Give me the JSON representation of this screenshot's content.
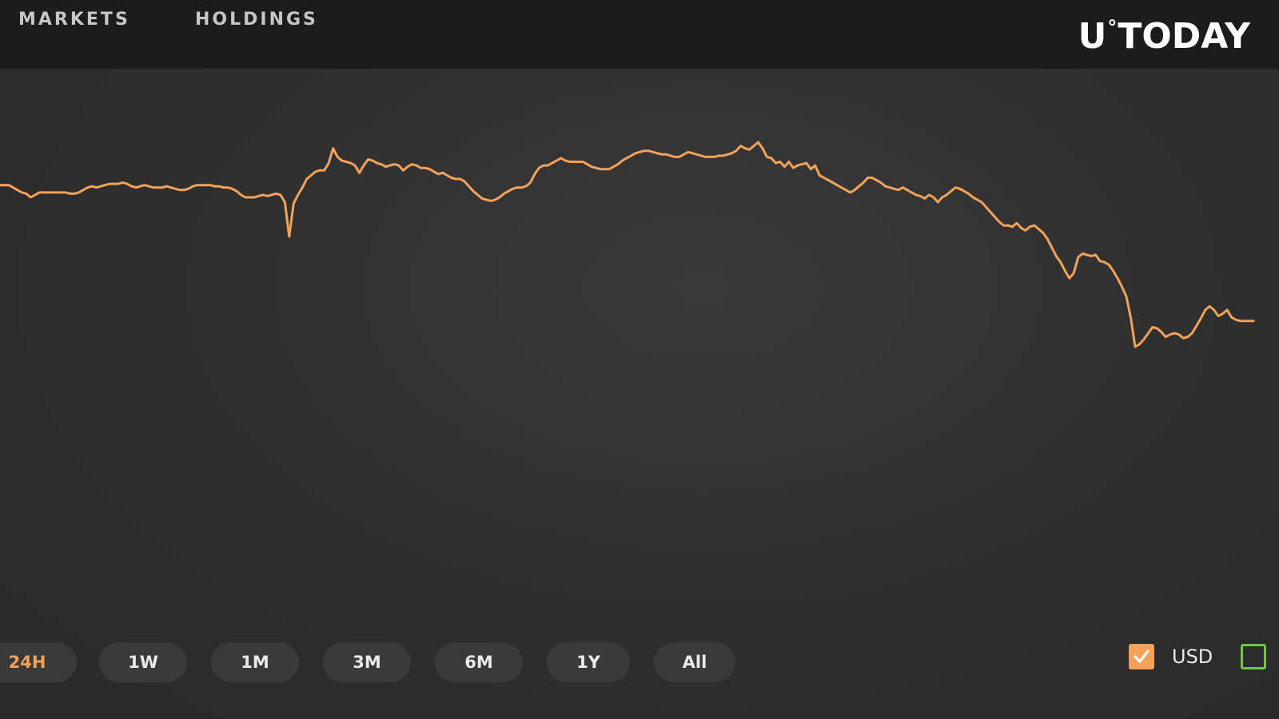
{
  "nav": {
    "tabs": [
      {
        "label": "MARKETS"
      },
      {
        "label": "HOLDINGS"
      }
    ]
  },
  "logo": {
    "left": "U",
    "degree": "°",
    "right": "TODAY"
  },
  "chart_data": {
    "type": "line",
    "line_color": "#f4a259",
    "background": "#2e2e2e",
    "values": [
      72.0,
      72.0,
      72.0,
      71.8,
      71.6,
      71.4,
      71.3,
      71.0,
      71.2,
      71.4,
      71.4,
      71.4,
      71.4,
      71.4,
      71.4,
      71.4,
      71.3,
      71.3,
      71.4,
      71.6,
      71.8,
      71.9,
      71.8,
      71.9,
      72.0,
      72.1,
      72.1,
      72.1,
      72.2,
      72.1,
      71.9,
      71.8,
      71.9,
      72.0,
      71.9,
      71.8,
      71.8,
      71.8,
      71.9,
      71.8,
      71.7,
      71.6,
      71.6,
      71.7,
      71.9,
      72.0,
      72.0,
      72.0,
      72.0,
      71.9,
      71.9,
      71.8,
      71.8,
      71.7,
      71.5,
      71.2,
      71.0,
      71.0,
      71.0,
      71.1,
      71.2,
      71.1,
      71.2,
      71.3,
      71.2,
      70.6,
      67.8,
      70.5,
      71.2,
      71.8,
      72.5,
      72.8,
      73.1,
      73.2,
      73.2,
      73.8,
      75.0,
      74.3,
      74.0,
      73.9,
      73.8,
      73.6,
      73.0,
      73.6,
      74.1,
      74.0,
      73.8,
      73.7,
      73.5,
      73.6,
      73.7,
      73.6,
      73.2,
      73.5,
      73.7,
      73.6,
      73.4,
      73.4,
      73.3,
      73.1,
      72.9,
      73.0,
      72.8,
      72.6,
      72.5,
      72.5,
      72.3,
      71.9,
      71.5,
      71.2,
      70.9,
      70.8,
      70.7,
      70.8,
      71.0,
      71.3,
      71.5,
      71.7,
      71.8,
      71.8,
      71.9,
      72.2,
      72.9,
      73.4,
      73.6,
      73.6,
      73.8,
      74.0,
      74.2,
      74.0,
      73.9,
      73.9,
      73.9,
      73.9,
      73.7,
      73.5,
      73.4,
      73.3,
      73.3,
      73.3,
      73.5,
      73.7,
      74.0,
      74.2,
      74.4,
      74.6,
      74.7,
      74.8,
      74.8,
      74.7,
      74.6,
      74.5,
      74.5,
      74.4,
      74.3,
      74.3,
      74.5,
      74.7,
      74.6,
      74.5,
      74.4,
      74.3,
      74.3,
      74.3,
      74.4,
      74.4,
      74.5,
      74.6,
      74.8,
      75.2,
      75.0,
      74.9,
      75.2,
      75.5,
      75.0,
      74.3,
      74.2,
      73.8,
      73.9,
      73.5,
      73.9,
      73.4,
      73.6,
      73.7,
      73.8,
      73.3,
      73.6,
      72.8,
      72.6,
      72.4,
      72.2,
      72.0,
      71.8,
      71.6,
      71.4,
      71.6,
      71.9,
      72.2,
      72.6,
      72.6,
      72.4,
      72.2,
      71.9,
      71.8,
      71.7,
      71.6,
      71.8,
      71.6,
      71.4,
      71.2,
      71.1,
      70.9,
      71.2,
      71.0,
      70.6,
      71.0,
      71.2,
      71.5,
      71.8,
      71.7,
      71.5,
      71.3,
      71.0,
      70.8,
      70.6,
      70.2,
      69.8,
      69.4,
      69.0,
      68.7,
      68.7,
      68.6,
      68.9,
      68.5,
      68.3,
      68.6,
      68.7,
      68.4,
      68.1,
      67.6,
      66.9,
      66.2,
      65.7,
      65.0,
      64.4,
      64.8,
      66.1,
      66.4,
      66.3,
      66.2,
      66.3,
      65.8,
      65.7,
      65.5,
      65.0,
      64.4,
      63.7,
      62.9,
      61.2,
      58.8,
      59.0,
      59.4,
      59.9,
      60.4,
      60.3,
      60.0,
      59.6,
      59.8,
      59.9,
      59.8,
      59.5,
      59.6,
      59.9,
      60.5,
      61.1,
      61.8,
      62.1,
      61.8,
      61.3,
      61.5,
      61.8,
      61.2,
      61.0,
      60.9,
      60.9,
      60.9,
      60.9
    ]
  },
  "ranges": [
    {
      "label": "24H",
      "active": true
    },
    {
      "label": "1W",
      "active": false
    },
    {
      "label": "1M",
      "active": false
    },
    {
      "label": "3M",
      "active": false
    },
    {
      "label": "6M",
      "active": false
    },
    {
      "label": "1Y",
      "active": false
    },
    {
      "label": "All",
      "active": false
    }
  ],
  "currency": {
    "usd": {
      "label": "USD",
      "checked": true
    }
  }
}
